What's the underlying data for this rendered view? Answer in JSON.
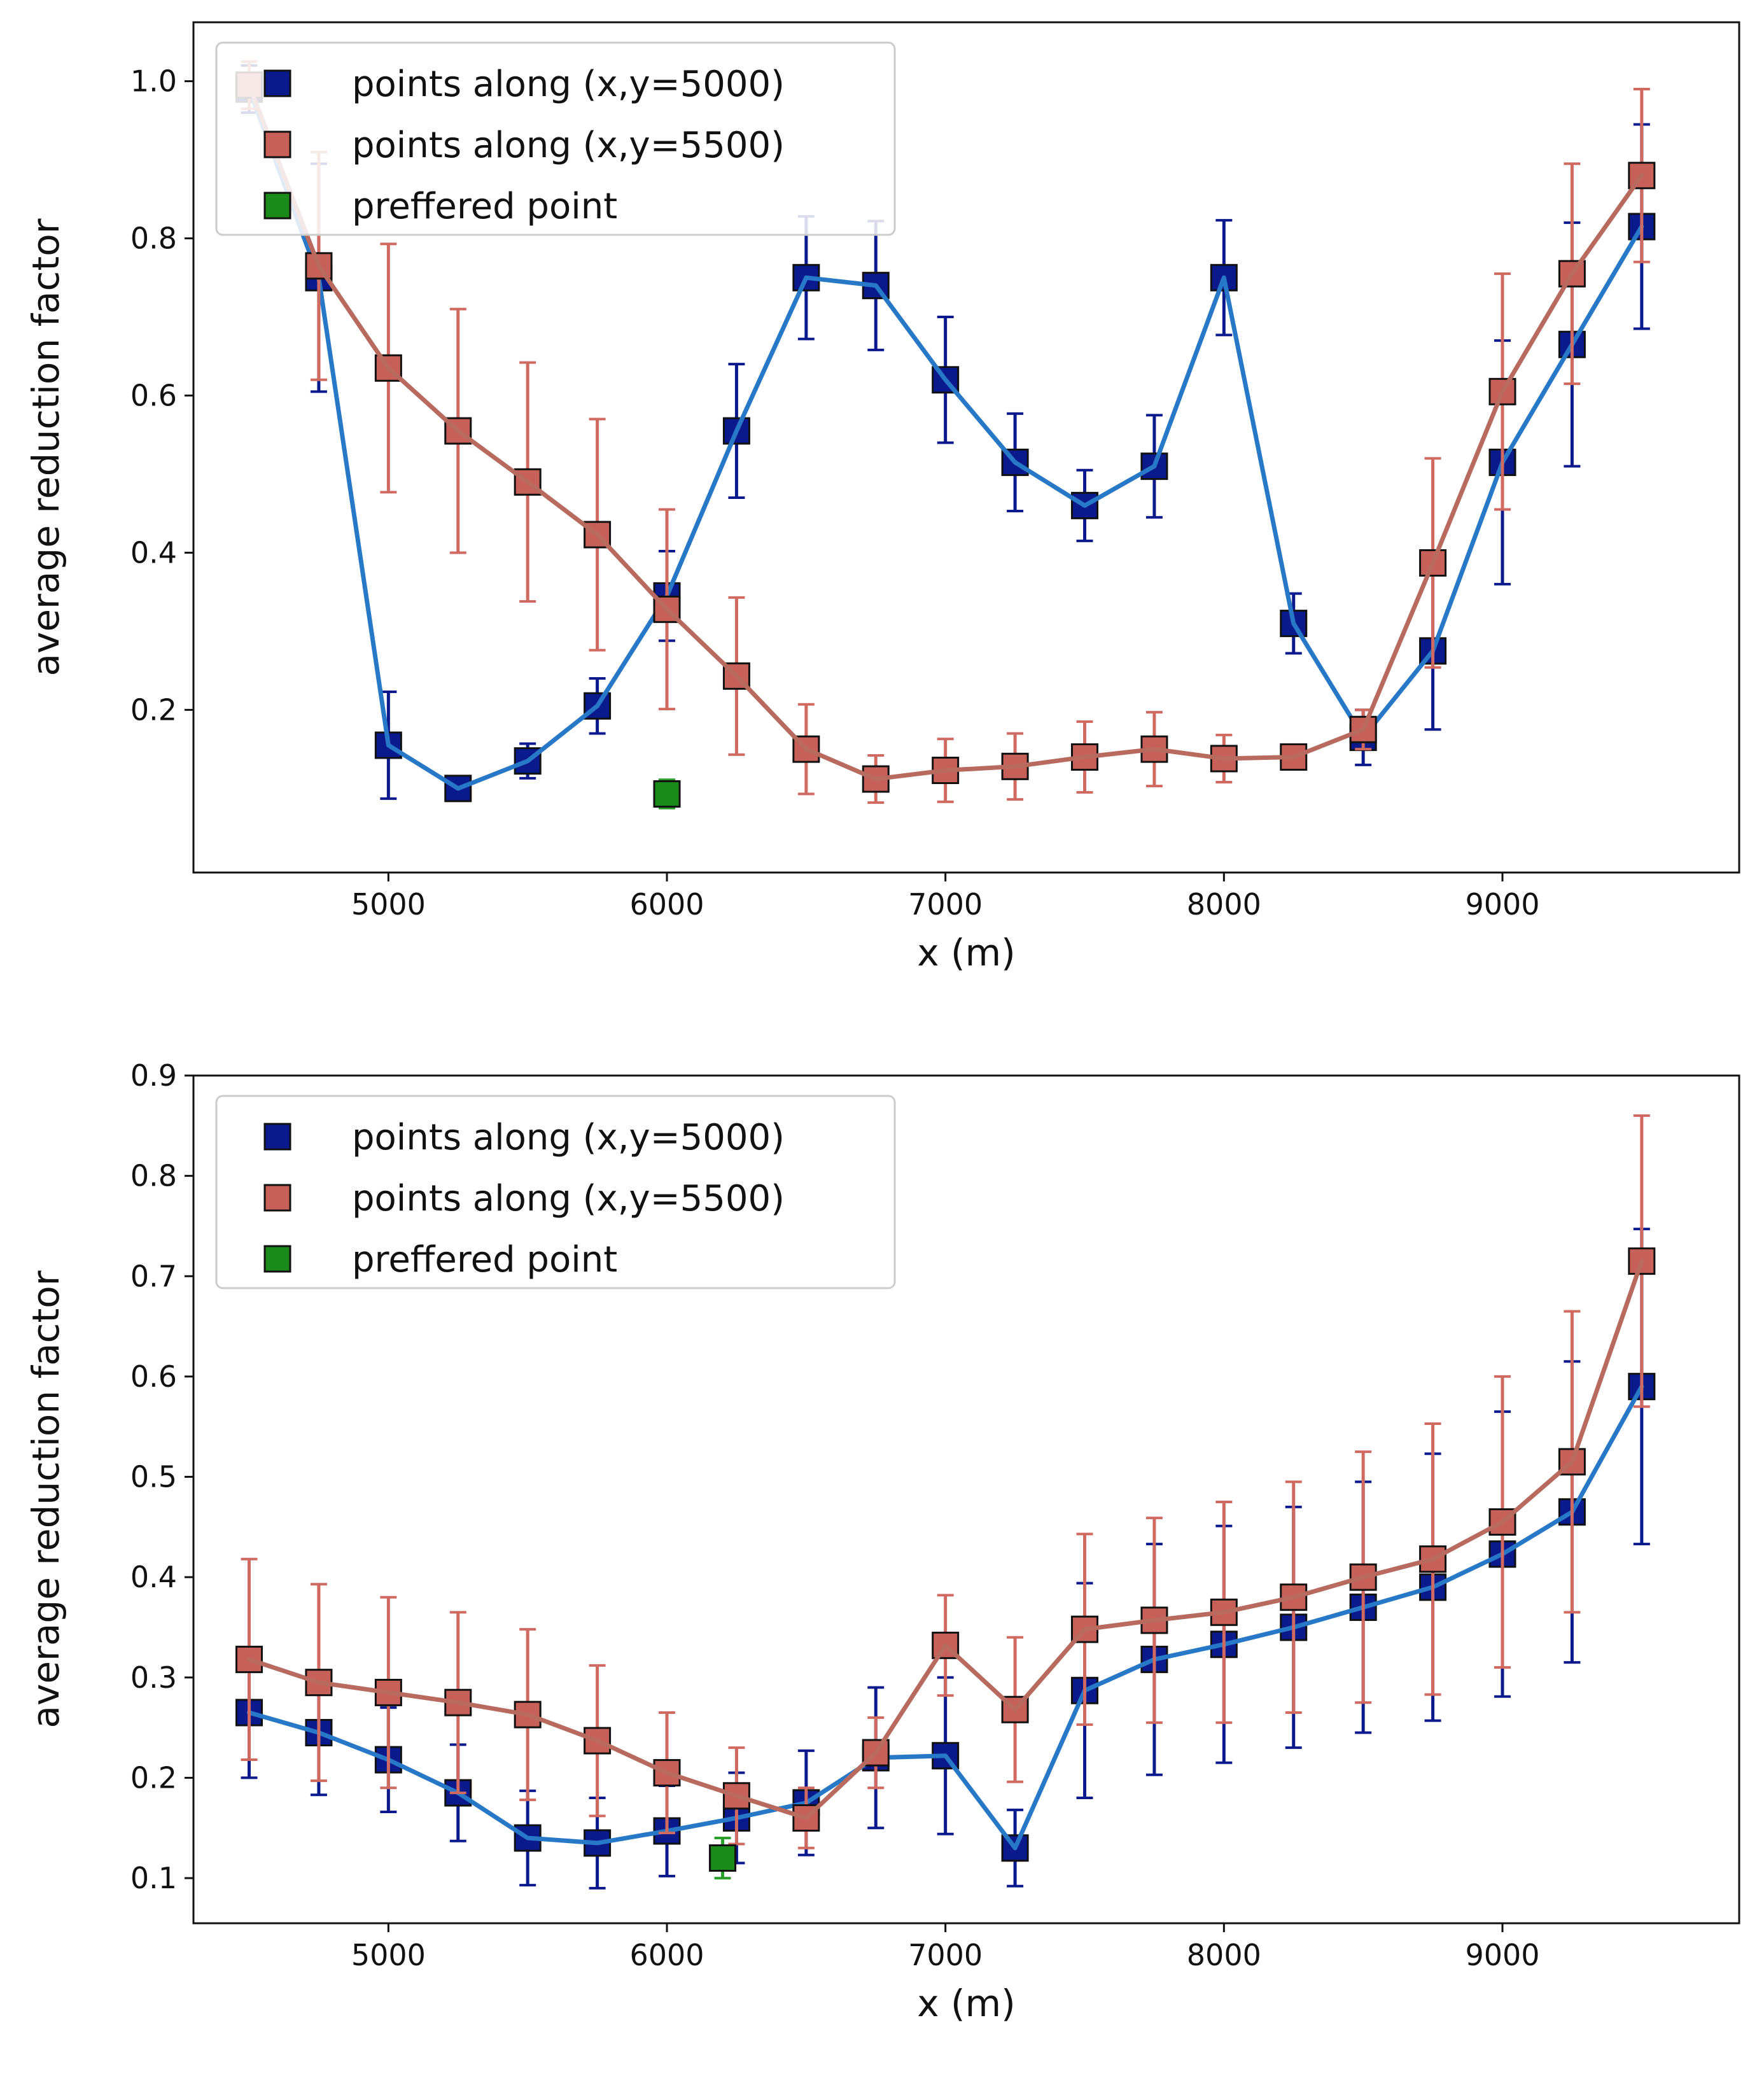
{
  "colors": {
    "series1_marker": "#0a1a8c",
    "series1_line": "#2878c8",
    "series1_error": "#0a1a8c",
    "series2_marker": "#c8605a",
    "series2_line": "#b86a5e",
    "series2_error": "#d06a60",
    "preferred_marker": "#1a8a1a",
    "preferred_error": "#2aa02a"
  },
  "chart_data": [
    {
      "type": "line",
      "xlabel": "x (m)",
      "ylabel": "average reduction factor",
      "xlim": [
        4300,
        9850
      ],
      "ylim": [
        -0.007,
        1.075
      ],
      "xticks": [
        5000,
        6000,
        7000,
        8000,
        9000
      ],
      "yticks": [
        0.2,
        0.4,
        0.6,
        0.8,
        1.0
      ],
      "ytick_labels": [
        "0.2",
        "0.4",
        "0.6",
        "0.8",
        "1.0"
      ],
      "legend": {
        "location": "top-left",
        "entries": [
          "points along (x,y=5000)",
          "points along (x,y=5500)",
          "preffered point"
        ]
      },
      "x": [
        4500,
        4750,
        5000,
        5250,
        5500,
        5750,
        6000,
        6250,
        6500,
        6750,
        7000,
        7250,
        7500,
        7750,
        8000,
        8250,
        8500,
        8750,
        9000,
        9250,
        9500
      ],
      "series": [
        {
          "name": "points along (x,y=5000)",
          "values": [
            0.99,
            0.75,
            0.155,
            0.1,
            0.135,
            0.205,
            0.345,
            0.555,
            0.75,
            0.74,
            0.62,
            0.515,
            0.46,
            0.51,
            0.75,
            0.31,
            0.165,
            0.275,
            0.515,
            0.665,
            0.815
          ],
          "errors": [
            0.03,
            0.145,
            0.068,
            0.01,
            0.022,
            0.035,
            0.057,
            0.085,
            0.078,
            0.082,
            0.08,
            0.062,
            0.045,
            0.065,
            0.073,
            0.038,
            0.035,
            0.1,
            0.155,
            0.155,
            0.13
          ]
        },
        {
          "name": "points along (x,y=5500)",
          "values": [
            0.995,
            0.765,
            0.635,
            0.555,
            0.49,
            0.423,
            0.328,
            0.243,
            0.15,
            0.112,
            0.123,
            0.128,
            0.14,
            0.15,
            0.138,
            0.14,
            0.175,
            0.387,
            0.605,
            0.755,
            0.88
          ],
          "errors": [
            0.03,
            0.145,
            0.158,
            0.155,
            0.152,
            0.147,
            0.127,
            0.1,
            0.057,
            0.03,
            0.04,
            0.042,
            0.045,
            0.047,
            0.03,
            0.012,
            0.025,
            0.133,
            0.15,
            0.14,
            0.11
          ]
        },
        {
          "name": "preffered point",
          "values": [
            0.093
          ],
          "x": [
            6000
          ],
          "errors": [
            0.018
          ]
        }
      ]
    },
    {
      "type": "line",
      "xlabel": "x (m)",
      "ylabel": "average reduction factor",
      "xlim": [
        4300,
        9850
      ],
      "ylim": [
        0.055,
        0.9
      ],
      "xticks": [
        5000,
        6000,
        7000,
        8000,
        9000
      ],
      "yticks": [
        0.1,
        0.2,
        0.3,
        0.4,
        0.5,
        0.6,
        0.7,
        0.8,
        0.9
      ],
      "ytick_labels": [
        "0.1",
        "0.2",
        "0.3",
        "0.4",
        "0.5",
        "0.6",
        "0.7",
        "0.8",
        "0.9"
      ],
      "legend": {
        "location": "top-left",
        "entries": [
          "points along (x,y=5000)",
          "points along (x,y=5500)",
          "preffered point"
        ]
      },
      "x": [
        4500,
        4750,
        5000,
        5250,
        5500,
        5750,
        6000,
        6250,
        6500,
        6750,
        7000,
        7250,
        7500,
        7750,
        8000,
        8250,
        8500,
        8750,
        9000,
        9250,
        9500
      ],
      "series": [
        {
          "name": "points along (x,y=5000)",
          "values": [
            0.265,
            0.245,
            0.218,
            0.185,
            0.14,
            0.135,
            0.147,
            0.16,
            0.175,
            0.22,
            0.222,
            0.13,
            0.287,
            0.318,
            0.333,
            0.35,
            0.37,
            0.39,
            0.423,
            0.465,
            0.59
          ],
          "errors": [
            0.065,
            0.062,
            0.052,
            0.048,
            0.047,
            0.045,
            0.045,
            0.045,
            0.052,
            0.07,
            0.078,
            0.038,
            0.107,
            0.115,
            0.118,
            0.12,
            0.125,
            0.133,
            0.142,
            0.15,
            0.157
          ]
        },
        {
          "name": "points along (x,y=5500)",
          "values": [
            0.318,
            0.295,
            0.285,
            0.275,
            0.263,
            0.237,
            0.205,
            0.182,
            0.16,
            0.225,
            0.332,
            0.268,
            0.348,
            0.357,
            0.365,
            0.38,
            0.4,
            0.418,
            0.455,
            0.515,
            0.715
          ],
          "errors": [
            0.1,
            0.098,
            0.095,
            0.09,
            0.085,
            0.075,
            0.06,
            0.048,
            0.03,
            0.035,
            0.05,
            0.072,
            0.095,
            0.102,
            0.11,
            0.115,
            0.125,
            0.135,
            0.145,
            0.15,
            0.145
          ]
        },
        {
          "name": "preffered point",
          "values": [
            0.12
          ],
          "x": [
            6200
          ],
          "errors": [
            0.02
          ]
        }
      ]
    }
  ]
}
